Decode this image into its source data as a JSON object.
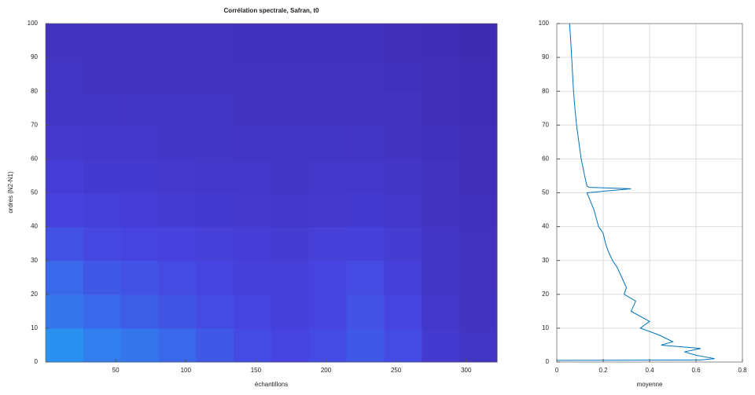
{
  "chart_data": [
    {
      "type": "heatmap",
      "title": "Corrélation spectrale, Safran, t0",
      "x_label": "échantillons",
      "y_label": "ordres (N2-N1)",
      "xlim": [
        0,
        322
      ],
      "xticks": [
        50,
        100,
        150,
        200,
        250,
        300
      ],
      "ylim": [
        0,
        100
      ],
      "yticks": [
        0,
        10,
        20,
        30,
        40,
        50,
        60,
        70,
        80,
        90,
        100
      ],
      "colormap": "parula",
      "z": [
        [
          0.42,
          0.36,
          0.34,
          0.3,
          0.26,
          0.22,
          0.2,
          0.22,
          0.26,
          0.22,
          0.14,
          0.1
        ],
        [
          0.34,
          0.3,
          0.27,
          0.25,
          0.22,
          0.2,
          0.18,
          0.2,
          0.24,
          0.2,
          0.12,
          0.09
        ],
        [
          0.3,
          0.26,
          0.24,
          0.22,
          0.2,
          0.18,
          0.17,
          0.2,
          0.22,
          0.18,
          0.11,
          0.08
        ],
        [
          0.24,
          0.21,
          0.2,
          0.19,
          0.17,
          0.16,
          0.15,
          0.17,
          0.18,
          0.15,
          0.1,
          0.08
        ],
        [
          0.19,
          0.17,
          0.16,
          0.15,
          0.14,
          0.13,
          0.12,
          0.13,
          0.14,
          0.12,
          0.09,
          0.07
        ],
        [
          0.16,
          0.14,
          0.14,
          0.13,
          0.12,
          0.12,
          0.11,
          0.12,
          0.12,
          0.11,
          0.08,
          0.06
        ],
        [
          0.13,
          0.12,
          0.12,
          0.11,
          0.11,
          0.1,
          0.1,
          0.1,
          0.1,
          0.09,
          0.07,
          0.06
        ],
        [
          0.11,
          0.1,
          0.1,
          0.1,
          0.1,
          0.09,
          0.09,
          0.09,
          0.09,
          0.08,
          0.06,
          0.05
        ],
        [
          0.1,
          0.09,
          0.09,
          0.09,
          0.09,
          0.08,
          0.08,
          0.08,
          0.08,
          0.07,
          0.06,
          0.05
        ],
        [
          0.09,
          0.08,
          0.08,
          0.08,
          0.08,
          0.07,
          0.07,
          0.07,
          0.07,
          0.06,
          0.05,
          0.04
        ]
      ]
    },
    {
      "type": "line",
      "x_label": "moyenne",
      "xlim": [
        0,
        0.8
      ],
      "xticks": [
        0,
        0.2,
        0.4,
        0.6,
        0.8
      ],
      "ylim": [
        0,
        100
      ],
      "yticks": [
        0,
        10,
        20,
        30,
        40,
        50,
        60,
        70,
        80,
        90,
        100
      ],
      "grid": true,
      "y": [
        0.5,
        0.6,
        1,
        2,
        3,
        4,
        5,
        6,
        8,
        10,
        12,
        15,
        18,
        20,
        22,
        25,
        28,
        30,
        33,
        35,
        38,
        40,
        45,
        50,
        51.2,
        51.6,
        52,
        55,
        60,
        65,
        70,
        75,
        80,
        85,
        90,
        95,
        100
      ],
      "series": [
        {
          "color": "#0072bd",
          "values": [
            0,
            0.62,
            0.68,
            0.6,
            0.55,
            0.62,
            0.45,
            0.5,
            0.44,
            0.36,
            0.4,
            0.32,
            0.34,
            0.29,
            0.3,
            0.28,
            0.26,
            0.24,
            0.22,
            0.21,
            0.2,
            0.18,
            0.16,
            0.13,
            0.32,
            0.14,
            0.13,
            0.12,
            0.105,
            0.095,
            0.085,
            0.078,
            0.072,
            0.068,
            0.064,
            0.06,
            0.055
          ]
        }
      ]
    }
  ]
}
